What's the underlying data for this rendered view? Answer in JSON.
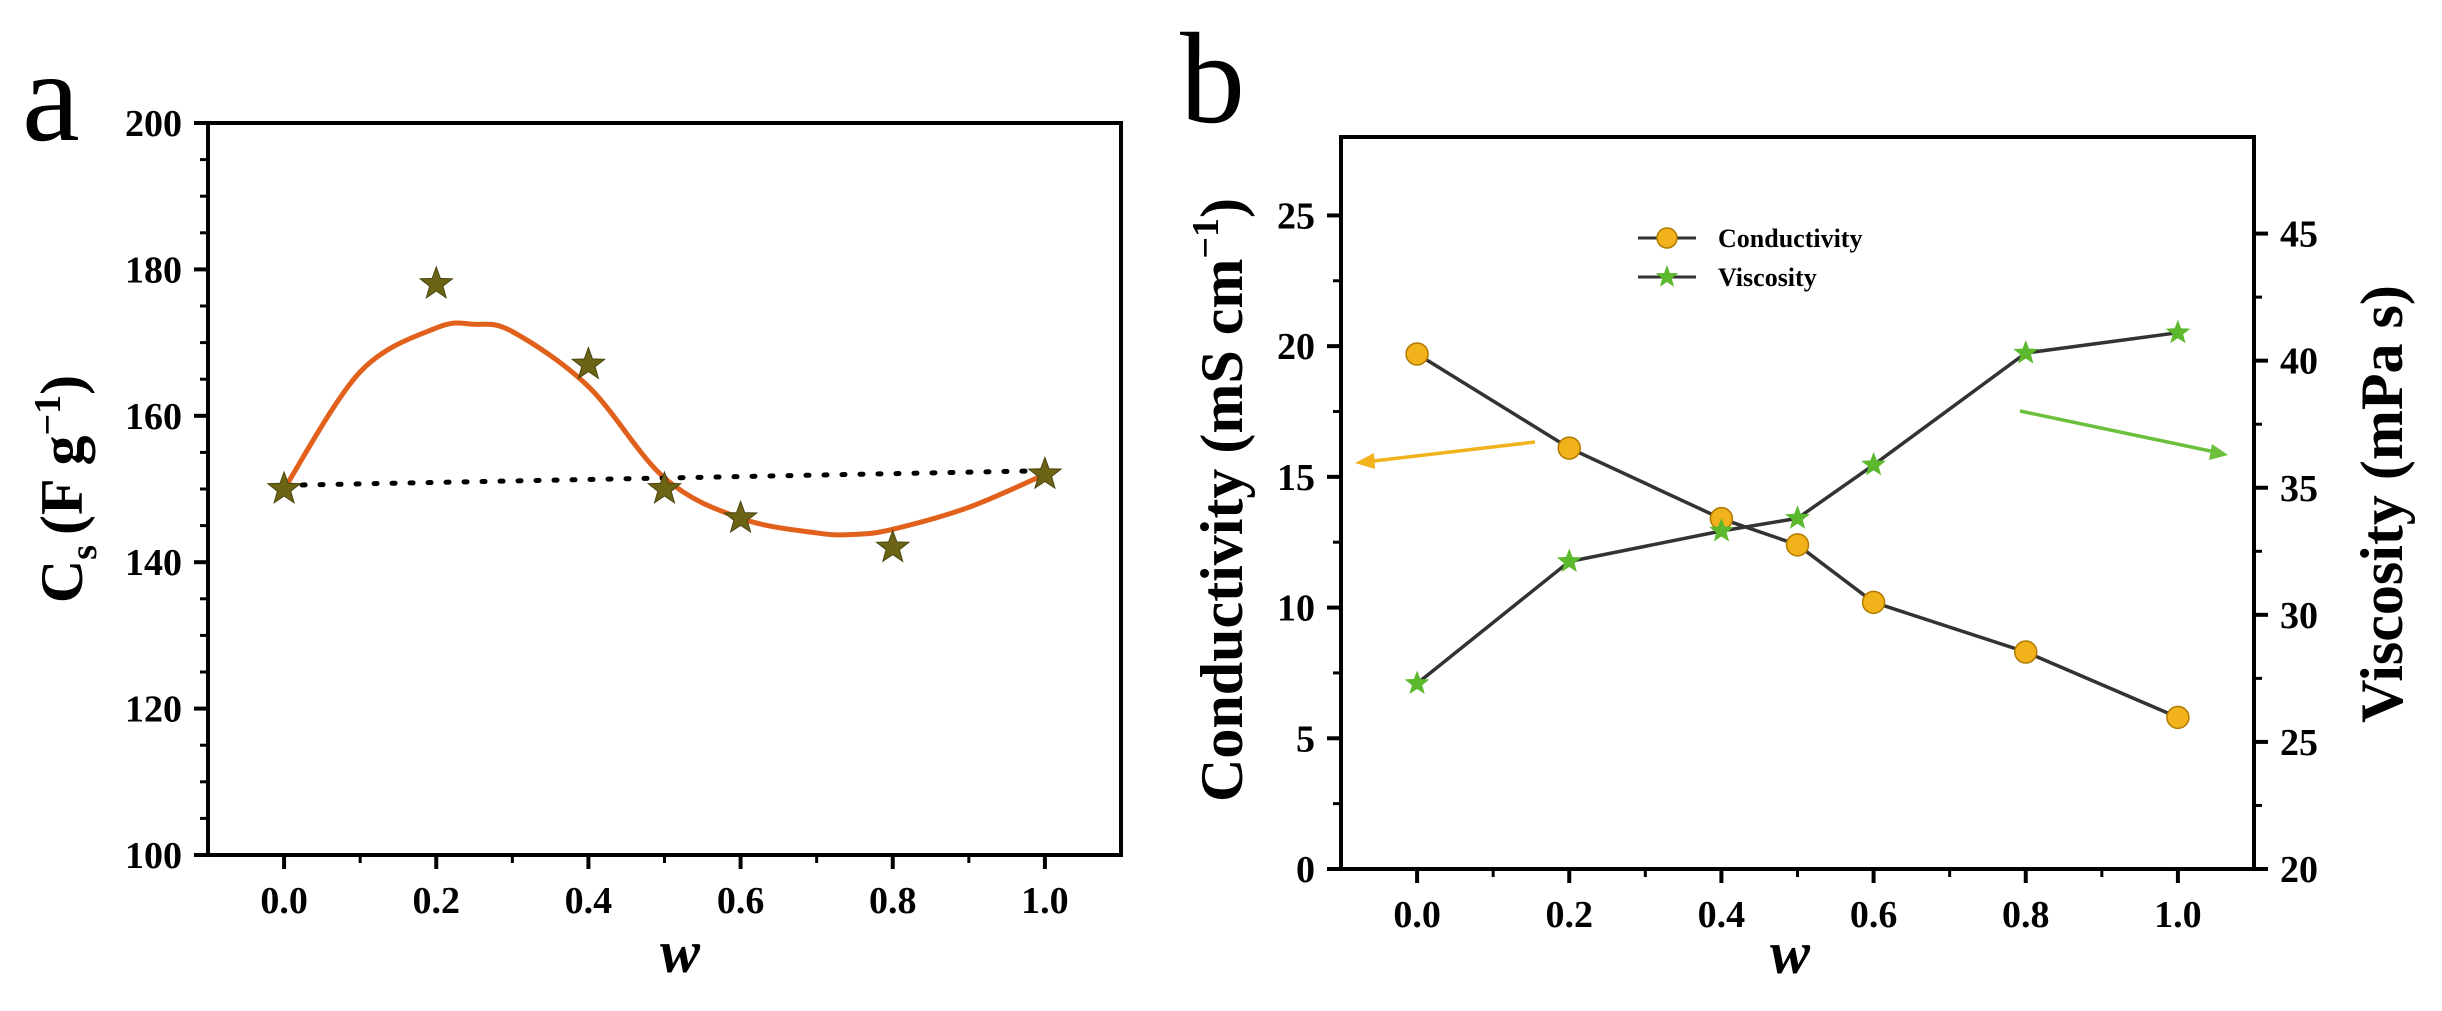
{
  "panels": {
    "a": "a",
    "b": "b"
  },
  "chart_data": [
    {
      "type": "scatter",
      "panel": "a",
      "xlabel": "w",
      "ylabel": {
        "main": "C",
        "sub": "s",
        "unit": "(F g",
        "sup": "−1",
        "close": ")"
      },
      "xlim": [
        -0.1,
        1.1
      ],
      "ylim": [
        100,
        200
      ],
      "x_ticks": [
        0.0,
        0.2,
        0.4,
        0.6,
        0.8,
        1.0
      ],
      "x_tick_labels": [
        "0.0",
        "0.2",
        "0.4",
        "0.6",
        "0.8",
        "1.0"
      ],
      "y_ticks": [
        100,
        120,
        140,
        160,
        180,
        200
      ],
      "y_tick_labels": [
        "100",
        "120",
        "140",
        "160",
        "180",
        "200"
      ],
      "grid": false,
      "series": [
        {
          "marker": "star",
          "color": "#6b6414",
          "x": [
            0.0,
            0.2,
            0.4,
            0.5,
            0.6,
            0.8,
            1.0
          ],
          "y": [
            150,
            178,
            167,
            150,
            146,
            142,
            152
          ]
        }
      ],
      "fit_curve": {
        "style": "solid",
        "color": "#e0601c",
        "x": [
          0.0,
          0.1,
          0.2,
          0.25,
          0.3,
          0.4,
          0.5,
          0.6,
          0.7,
          0.75,
          0.8,
          0.9,
          1.0
        ],
        "y": [
          150,
          166,
          172,
          172.5,
          171.5,
          164,
          151.5,
          146,
          144,
          143.8,
          144.5,
          147.5,
          152
        ]
      },
      "reference_line": {
        "style": "dotted",
        "color": "#000000",
        "x": [
          0.0,
          1.0
        ],
        "y": [
          150.5,
          152.5
        ]
      }
    },
    {
      "type": "line",
      "panel": "b",
      "xlabel": "w",
      "ylabel_left": {
        "main": "Conductivity (mS cm",
        "sup": "−1",
        "close": ")"
      },
      "ylabel_right": "Viscosity (mPa s)",
      "xlim": [
        -0.1,
        1.1
      ],
      "ylim_left": [
        0,
        28
      ],
      "ylim_right": [
        20,
        48.8
      ],
      "x_ticks": [
        0.0,
        0.2,
        0.4,
        0.6,
        0.8,
        1.0
      ],
      "x_tick_labels": [
        "0.0",
        "0.2",
        "0.4",
        "0.6",
        "0.8",
        "1.0"
      ],
      "y_left_ticks": [
        0,
        5,
        10,
        15,
        20,
        25
      ],
      "y_left_tick_labels": [
        "0",
        "5",
        "10",
        "15",
        "20",
        "25"
      ],
      "y_right_ticks": [
        20,
        25,
        30,
        35,
        40,
        45
      ],
      "y_right_tick_labels": [
        "20",
        "25",
        "30",
        "35",
        "40",
        "45"
      ],
      "grid": false,
      "legend_position": "top-center",
      "series": [
        {
          "name": "Conductivity",
          "axis": "left",
          "marker": "circle",
          "marker_color": "#f2b21b",
          "line_color": "#333333",
          "x": [
            0.0,
            0.2,
            0.4,
            0.5,
            0.6,
            0.8,
            1.0
          ],
          "y": [
            19.7,
            16.1,
            13.4,
            12.4,
            10.2,
            8.3,
            5.8
          ]
        },
        {
          "name": "Viscosity",
          "axis": "right",
          "marker": "star",
          "marker_color": "#5cb82c",
          "line_color": "#333333",
          "x": [
            0.0,
            0.2,
            0.4,
            0.5,
            0.6,
            0.8,
            1.0
          ],
          "y": [
            27.3,
            32.1,
            33.3,
            33.8,
            35.9,
            40.3,
            41.1
          ]
        }
      ],
      "arrows": [
        {
          "points_to": "left axis",
          "color": "#f2b21b"
        },
        {
          "points_to": "right axis",
          "color": "#6cbf3c"
        }
      ]
    }
  ]
}
